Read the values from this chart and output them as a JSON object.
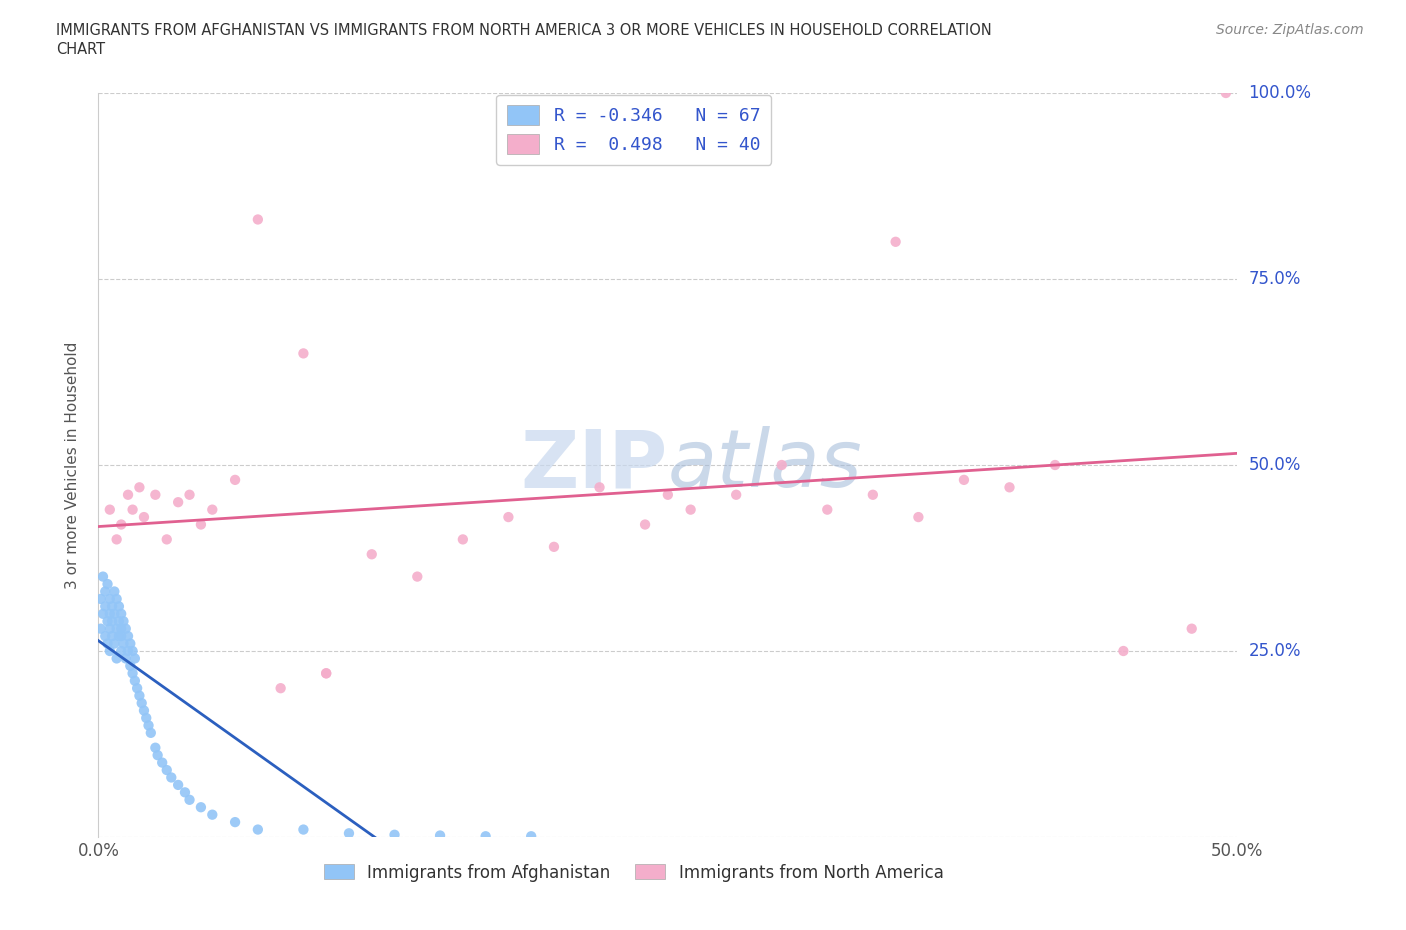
{
  "title_line1": "IMMIGRANTS FROM AFGHANISTAN VS IMMIGRANTS FROM NORTH AMERICA 3 OR MORE VEHICLES IN HOUSEHOLD CORRELATION",
  "title_line2": "CHART",
  "source": "Source: ZipAtlas.com",
  "ylabel": "3 or more Vehicles in Household",
  "xlim": [
    0.0,
    0.5
  ],
  "ylim": [
    0.0,
    1.0
  ],
  "xticks": [
    0.0,
    0.1,
    0.2,
    0.3,
    0.4,
    0.5
  ],
  "yticks": [
    0.0,
    0.25,
    0.5,
    0.75,
    1.0
  ],
  "xtick_labels": [
    "0.0%",
    "",
    "",
    "",
    "",
    "50.0%"
  ],
  "ytick_labels": [
    "",
    "25.0%",
    "50.0%",
    "75.0%",
    "100.0%"
  ],
  "afghanistan_R": -0.346,
  "afghanistan_N": 67,
  "north_america_R": 0.498,
  "north_america_N": 40,
  "blue_color": "#92C5F7",
  "pink_color": "#F4AECB",
  "blue_line_color": "#2B5FBF",
  "pink_line_color": "#E06090",
  "watermark_color": "#C8D8EE",
  "legend_R_color": "#3355CC",
  "background_color": "#ffffff",
  "afghanistan_x": [
    0.001,
    0.001,
    0.002,
    0.002,
    0.003,
    0.003,
    0.003,
    0.004,
    0.004,
    0.004,
    0.005,
    0.005,
    0.005,
    0.005,
    0.006,
    0.006,
    0.006,
    0.007,
    0.007,
    0.007,
    0.008,
    0.008,
    0.008,
    0.009,
    0.009,
    0.009,
    0.01,
    0.01,
    0.01,
    0.01,
    0.011,
    0.011,
    0.012,
    0.012,
    0.013,
    0.013,
    0.014,
    0.014,
    0.015,
    0.015,
    0.016,
    0.016,
    0.017,
    0.018,
    0.019,
    0.02,
    0.021,
    0.022,
    0.023,
    0.025,
    0.026,
    0.028,
    0.03,
    0.032,
    0.035,
    0.038,
    0.04,
    0.045,
    0.05,
    0.06,
    0.07,
    0.09,
    0.11,
    0.13,
    0.15,
    0.17,
    0.19
  ],
  "afghanistan_y": [
    0.28,
    0.32,
    0.3,
    0.35,
    0.27,
    0.33,
    0.31,
    0.29,
    0.34,
    0.26,
    0.3,
    0.28,
    0.32,
    0.25,
    0.29,
    0.31,
    0.27,
    0.3,
    0.26,
    0.33,
    0.28,
    0.32,
    0.24,
    0.27,
    0.31,
    0.29,
    0.28,
    0.25,
    0.3,
    0.27,
    0.26,
    0.29,
    0.24,
    0.28,
    0.25,
    0.27,
    0.23,
    0.26,
    0.22,
    0.25,
    0.21,
    0.24,
    0.2,
    0.19,
    0.18,
    0.17,
    0.16,
    0.15,
    0.14,
    0.12,
    0.11,
    0.1,
    0.09,
    0.08,
    0.07,
    0.06,
    0.05,
    0.04,
    0.03,
    0.02,
    0.01,
    0.01,
    0.005,
    0.003,
    0.002,
    0.001,
    0.001
  ],
  "north_america_x": [
    0.005,
    0.008,
    0.01,
    0.013,
    0.015,
    0.018,
    0.02,
    0.025,
    0.03,
    0.035,
    0.04,
    0.045,
    0.05,
    0.06,
    0.07,
    0.08,
    0.09,
    0.1,
    0.12,
    0.14,
    0.16,
    0.18,
    0.2,
    0.22,
    0.24,
    0.26,
    0.28,
    0.3,
    0.32,
    0.34,
    0.36,
    0.38,
    0.4,
    0.42,
    0.45,
    0.48,
    0.495,
    0.35,
    0.25,
    0.1
  ],
  "north_america_y": [
    0.44,
    0.4,
    0.42,
    0.46,
    0.44,
    0.47,
    0.43,
    0.46,
    0.4,
    0.45,
    0.46,
    0.42,
    0.44,
    0.48,
    0.83,
    0.2,
    0.65,
    0.22,
    0.38,
    0.35,
    0.4,
    0.43,
    0.39,
    0.47,
    0.42,
    0.44,
    0.46,
    0.5,
    0.44,
    0.46,
    0.43,
    0.48,
    0.47,
    0.5,
    0.25,
    0.28,
    1.0,
    0.8,
    0.46,
    0.22
  ]
}
